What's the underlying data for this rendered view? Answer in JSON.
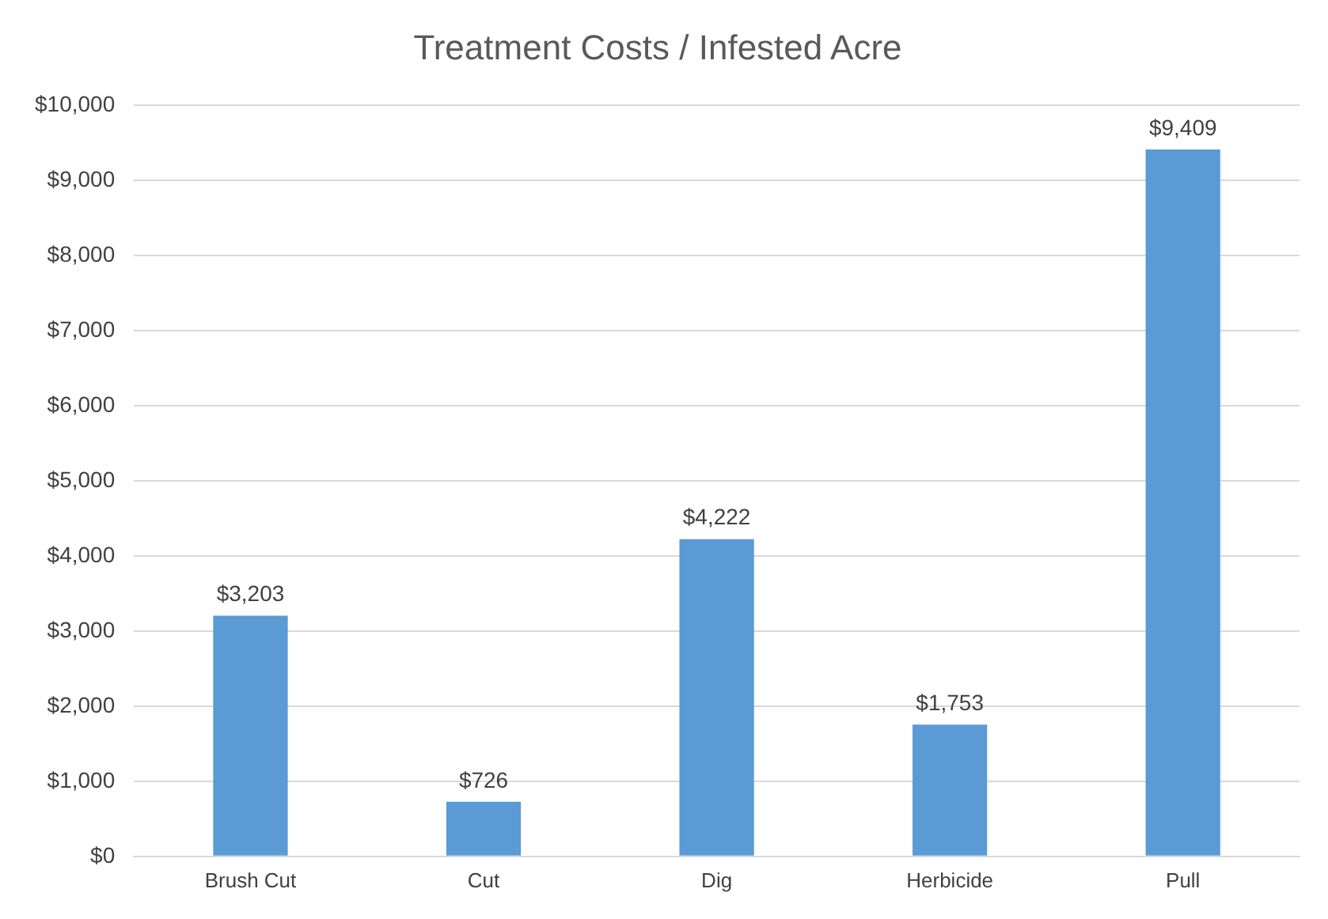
{
  "chart_data": {
    "type": "bar",
    "title": "Treatment Costs / Infested Acre",
    "categories": [
      "Brush Cut",
      "Cut",
      "Dig",
      "Herbicide",
      "Pull"
    ],
    "values": [
      3203,
      726,
      4222,
      1753,
      9409
    ],
    "value_labels": [
      "$3,203",
      "$726",
      "$4,222",
      "$1,753",
      "$9,409"
    ],
    "color": "#5b9bd5",
    "ylim": [
      0,
      10000
    ],
    "yticks": [
      {
        "value": 0,
        "label": "$0"
      },
      {
        "value": 1000,
        "label": "$1,000"
      },
      {
        "value": 2000,
        "label": "$2,000"
      },
      {
        "value": 3000,
        "label": "$3,000"
      },
      {
        "value": 4000,
        "label": "$4,000"
      },
      {
        "value": 5000,
        "label": "$5,000"
      },
      {
        "value": 6000,
        "label": "$6,000"
      },
      {
        "value": 7000,
        "label": "$7,000"
      },
      {
        "value": 8000,
        "label": "$8,000"
      },
      {
        "value": 9000,
        "label": "$9,000"
      },
      {
        "value": 10000,
        "label": "$10,000"
      }
    ],
    "grid": "y",
    "legend": false
  }
}
